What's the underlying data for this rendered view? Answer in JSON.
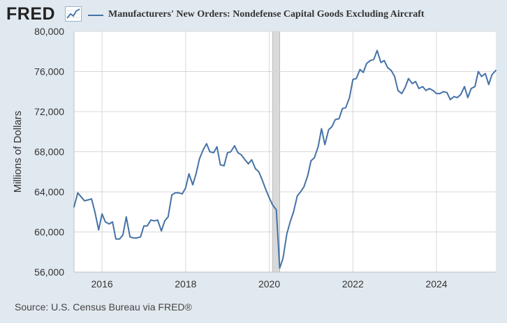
{
  "header": {
    "logo_text": "FRED",
    "series_title": "Manufacturers' New Orders: Nondefense Capital Goods Excluding Aircraft"
  },
  "source": "Source: U.S. Census Bureau via FRED®",
  "colors": {
    "line": "#4572a7",
    "recession": "#d9d9d9",
    "background": "#e1e9f0",
    "plot_bg": "#ffffff"
  },
  "chart_data": {
    "type": "line",
    "title": "Manufacturers' New Orders: Nondefense Capital Goods Excluding Aircraft",
    "xlabel": "",
    "ylabel": "Millions of Dollars",
    "xlim": [
      2015.33,
      2025.42
    ],
    "ylim": [
      56000,
      80000
    ],
    "x_ticks": [
      2016,
      2018,
      2020,
      2022,
      2024
    ],
    "x_tick_labels": [
      "2016",
      "2018",
      "2020",
      "2022",
      "2024"
    ],
    "y_ticks": [
      56000,
      60000,
      64000,
      68000,
      72000,
      76000,
      80000
    ],
    "y_tick_labels": [
      "56,000",
      "60,000",
      "64,000",
      "68,000",
      "72,000",
      "76,000",
      "80,000"
    ],
    "grid": true,
    "recessions": [
      [
        2020.08,
        2020.25
      ]
    ],
    "series": [
      {
        "name": "Manufacturers' New Orders: Nondefense Capital Goods Excluding Aircraft",
        "x": [
          2015.33,
          2015.42,
          2015.5,
          2015.58,
          2015.67,
          2015.75,
          2015.83,
          2015.92,
          2016.0,
          2016.08,
          2016.17,
          2016.25,
          2016.33,
          2016.42,
          2016.5,
          2016.58,
          2016.67,
          2016.75,
          2016.83,
          2016.92,
          2017.0,
          2017.08,
          2017.17,
          2017.25,
          2017.33,
          2017.42,
          2017.5,
          2017.58,
          2017.67,
          2017.75,
          2017.83,
          2017.92,
          2018.0,
          2018.08,
          2018.17,
          2018.25,
          2018.33,
          2018.42,
          2018.5,
          2018.58,
          2018.67,
          2018.75,
          2018.83,
          2018.92,
          2019.0,
          2019.08,
          2019.17,
          2019.25,
          2019.33,
          2019.42,
          2019.5,
          2019.58,
          2019.67,
          2019.75,
          2019.83,
          2019.92,
          2020.0,
          2020.08,
          2020.17,
          2020.25,
          2020.33,
          2020.42,
          2020.5,
          2020.58,
          2020.67,
          2020.75,
          2020.83,
          2020.92,
          2021.0,
          2021.08,
          2021.17,
          2021.25,
          2021.33,
          2021.42,
          2021.5,
          2021.58,
          2021.67,
          2021.75,
          2021.83,
          2021.92,
          2022.0,
          2022.08,
          2022.17,
          2022.25,
          2022.33,
          2022.42,
          2022.5,
          2022.58,
          2022.67,
          2022.75,
          2022.83,
          2022.92,
          2023.0,
          2023.08,
          2023.17,
          2023.25,
          2023.33,
          2023.42,
          2023.5,
          2023.58,
          2023.67,
          2023.75,
          2023.83,
          2023.92,
          2024.0,
          2024.08,
          2024.17,
          2024.25,
          2024.33,
          2024.42,
          2024.5,
          2024.58,
          2024.67,
          2024.75,
          2024.83,
          2024.92,
          2025.0,
          2025.08,
          2025.17,
          2025.25,
          2025.33,
          2025.42
        ],
        "values": [
          62500,
          63900,
          63500,
          63100,
          63200,
          63300,
          62000,
          60200,
          61800,
          61000,
          60800,
          61000,
          59300,
          59300,
          59700,
          61500,
          59500,
          59400,
          59400,
          59500,
          60600,
          60600,
          61200,
          61100,
          61200,
          60100,
          61100,
          61500,
          63700,
          63900,
          63900,
          63800,
          64400,
          65800,
          64700,
          65800,
          67300,
          68200,
          68800,
          68000,
          67900,
          68500,
          66700,
          66600,
          67900,
          68000,
          68600,
          67900,
          67700,
          67200,
          66800,
          67200,
          66300,
          66000,
          65200,
          64200,
          63400,
          62700,
          62200,
          56400,
          57400,
          59800,
          61000,
          62000,
          63600,
          64000,
          64500,
          65600,
          67100,
          67400,
          68500,
          70300,
          68700,
          70200,
          70500,
          71200,
          71300,
          72300,
          72400,
          73400,
          75200,
          75300,
          76200,
          75900,
          76800,
          77100,
          77200,
          78100,
          76900,
          77100,
          76400,
          76100,
          75500,
          74100,
          73800,
          74400,
          75300,
          74800,
          75000,
          74300,
          74500,
          74100,
          74300,
          74100,
          73800,
          73800,
          74000,
          73900,
          73200,
          73500,
          73400,
          73700,
          74500,
          73400,
          74300,
          74500,
          76000,
          75500,
          75800,
          74700,
          75700,
          76100
        ]
      }
    ]
  }
}
